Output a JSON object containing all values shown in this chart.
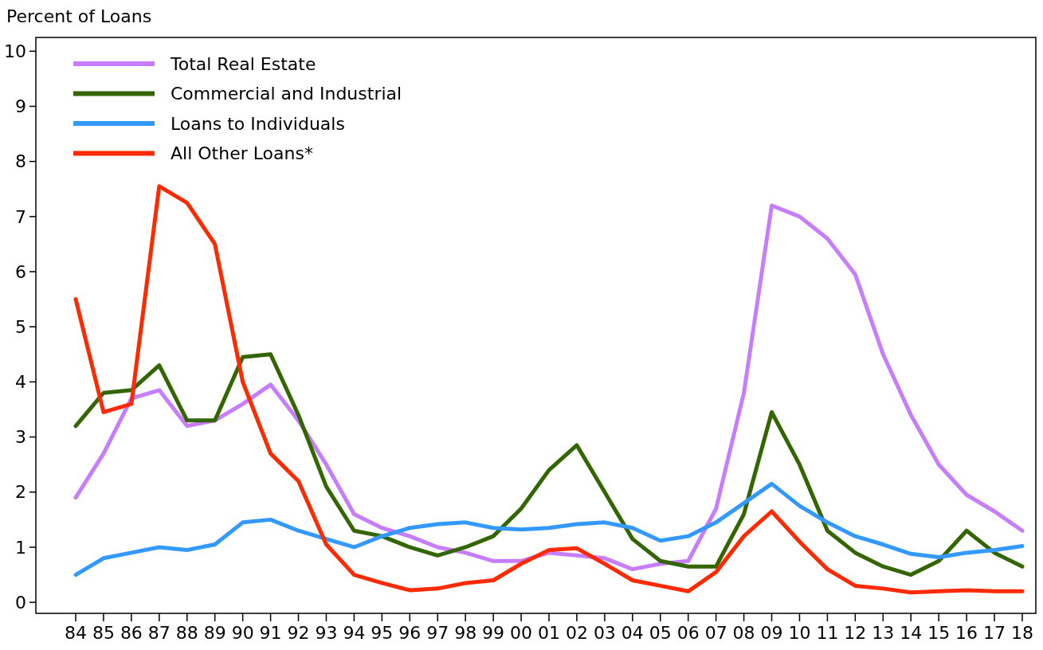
{
  "chart_data": {
    "type": "line",
    "ylabel": "Percent of Loans",
    "categories": [
      "84",
      "85",
      "86",
      "87",
      "88",
      "89",
      "90",
      "91",
      "92",
      "93",
      "94",
      "95",
      "96",
      "97",
      "98",
      "99",
      "00",
      "01",
      "02",
      "03",
      "04",
      "05",
      "06",
      "07",
      "08",
      "09",
      "10",
      "11",
      "12",
      "13",
      "14",
      "15",
      "16",
      "17",
      "18"
    ],
    "ylim": [
      -0.2,
      10.25
    ],
    "yticks": [
      0,
      1,
      2,
      3,
      4,
      5,
      6,
      7,
      8,
      9,
      10
    ],
    "grid": false,
    "legend": "top left",
    "line_style": "solid",
    "marker": "none",
    "series": [
      {
        "name": "Total Real Estate",
        "color": "#c77dff",
        "values": [
          1.9,
          2.7,
          3.7,
          3.85,
          3.2,
          3.3,
          3.6,
          3.95,
          3.3,
          2.5,
          1.6,
          1.35,
          1.2,
          1.0,
          0.9,
          0.75,
          0.75,
          0.9,
          0.85,
          0.8,
          0.6,
          0.7,
          0.75,
          1.7,
          3.8,
          7.2,
          7.0,
          6.6,
          5.95,
          4.5,
          3.4,
          2.5,
          1.95,
          1.65,
          1.3
        ]
      },
      {
        "name": "Commercial and Industrial",
        "color": "#336600",
        "values": [
          3.2,
          3.8,
          3.85,
          4.3,
          3.3,
          3.3,
          4.45,
          4.5,
          3.4,
          2.1,
          1.3,
          1.2,
          1.0,
          0.85,
          1.0,
          1.2,
          1.7,
          2.4,
          2.85,
          2.0,
          1.15,
          0.75,
          0.65,
          0.65,
          1.6,
          3.45,
          2.5,
          1.3,
          0.9,
          0.65,
          0.5,
          0.75,
          1.3,
          0.9,
          0.65
        ]
      },
      {
        "name": "Loans to Individuals",
        "color": "#3399ff",
        "values": [
          0.5,
          0.8,
          0.9,
          1.0,
          0.95,
          1.05,
          1.45,
          1.5,
          1.3,
          1.15,
          1.0,
          1.2,
          1.35,
          1.42,
          1.45,
          1.35,
          1.32,
          1.35,
          1.42,
          1.45,
          1.35,
          1.12,
          1.2,
          1.45,
          1.8,
          2.15,
          1.75,
          1.45,
          1.2,
          1.05,
          0.88,
          0.82,
          0.9,
          0.95,
          1.02
        ]
      },
      {
        "name": "All Other Loans*",
        "color": "#ff2a00",
        "values": [
          5.5,
          3.45,
          3.6,
          7.55,
          7.25,
          6.5,
          4.0,
          2.7,
          2.2,
          1.05,
          0.5,
          0.35,
          0.22,
          0.25,
          0.35,
          0.4,
          0.7,
          0.95,
          0.98,
          0.7,
          0.4,
          0.3,
          0.2,
          0.55,
          1.2,
          1.65,
          1.1,
          0.6,
          0.3,
          0.25,
          0.18,
          0.2,
          0.22,
          0.2,
          0.2
        ]
      }
    ]
  }
}
